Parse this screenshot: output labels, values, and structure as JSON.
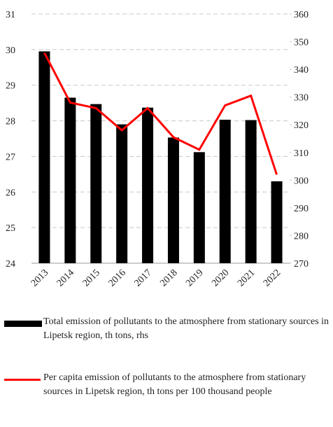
{
  "chart_data": {
    "type": "bar_line",
    "categories": [
      "2013",
      "2014",
      "2015",
      "2016",
      "2017",
      "2018",
      "2019",
      "2020",
      "2021",
      "2022"
    ],
    "series": [
      {
        "name": "Total emission of pollutants to the atmosphere from stationary sources in Lipetsk region, th tons, rhs",
        "type": "bar",
        "color": "#000000",
        "values": [
          29.95,
          28.65,
          28.47,
          27.9,
          28.37,
          27.53,
          27.12,
          28.03,
          28.02,
          26.3
        ]
      },
      {
        "name": "Per capita emission of pollutants to the atmosphere from stationary sources in Lipetsk region, th tons per 100 thousand people",
        "type": "line",
        "axis": "y2",
        "color": "#ff0000",
        "values": [
          346,
          328,
          326,
          318,
          326,
          315.5,
          311,
          327,
          330.5,
          302
        ]
      }
    ],
    "ylim": [
      24,
      31
    ],
    "yticks": [
      24,
      25,
      26,
      27,
      28,
      29,
      30,
      31
    ],
    "y2lim": [
      270,
      360
    ],
    "y2ticks": [
      270,
      280,
      290,
      300,
      310,
      320,
      330,
      340,
      350,
      360
    ],
    "grid": true,
    "legend": "bottom"
  }
}
